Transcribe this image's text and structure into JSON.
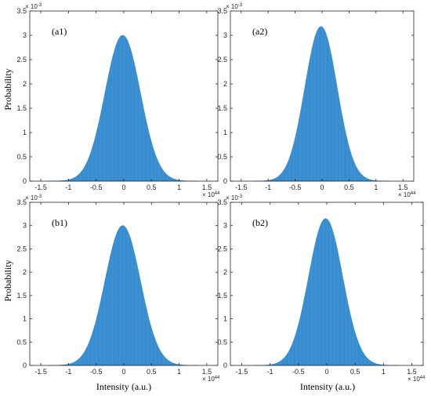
{
  "figure": {
    "ylabel": "Probability",
    "xlabel": "Intensity (a.u.)",
    "x_exponent_base": "× 10",
    "x_exponent_power": "44",
    "y_exponent_base": "× 10",
    "y_exponent_power": "-3"
  },
  "chart_data": [
    {
      "type": "area",
      "panel_label": "(a1)",
      "xlim": [
        -1.7,
        1.7
      ],
      "ylim": [
        0,
        3.5
      ],
      "xticks": [
        -1.5,
        -1,
        -0.5,
        0,
        0.5,
        1,
        1.5
      ],
      "xtick_labels": [
        "-1.5",
        "-1",
        "-0.5",
        "0",
        "0.5",
        "1",
        "1.5"
      ],
      "yticks": [
        0,
        0.5,
        1,
        1.5,
        2,
        2.5,
        3,
        3.5
      ],
      "ytick_labels": [
        "0",
        "0.5",
        "1",
        "1.5",
        "2",
        "2.5",
        "3",
        "3.5"
      ],
      "x_exponent": "44",
      "y_exponent": "-3",
      "distribution": {
        "mean": -0.02,
        "sigma": 0.32,
        "peak": 3.0
      },
      "color": "#3a8fd1"
    },
    {
      "type": "area",
      "panel_label": "(a2)",
      "xlim": [
        -1.7,
        1.7
      ],
      "ylim": [
        0,
        3.5
      ],
      "xticks": [
        -1.5,
        -1,
        -0.5,
        0,
        0.5,
        1,
        1.5
      ],
      "xtick_labels": [
        "-1.5",
        "-1",
        "-0.5",
        "0",
        "0.5",
        "1",
        "1.5"
      ],
      "yticks": [
        0,
        0.5,
        1,
        1.5,
        2,
        2.5,
        3,
        3.5
      ],
      "ytick_labels": [
        "0",
        "0.5",
        "1",
        "1.5",
        "2",
        "2.5",
        "3",
        "3.5"
      ],
      "x_exponent": "44",
      "y_exponent": "-3",
      "distribution": {
        "mean": -0.02,
        "sigma": 0.3,
        "peak": 3.18
      },
      "color": "#3a8fd1"
    },
    {
      "type": "area",
      "panel_label": "(b1)",
      "xlim": [
        -1.7,
        1.7
      ],
      "ylim": [
        0,
        3.5
      ],
      "xticks": [
        -1.5,
        -1,
        -0.5,
        0,
        0.5,
        1,
        1.5
      ],
      "xtick_labels": [
        "-1.5",
        "-1",
        "-0.5",
        "0",
        "0.5",
        "1",
        "1.5"
      ],
      "yticks": [
        0,
        0.5,
        1,
        1.5,
        2,
        2.5,
        3,
        3.5
      ],
      "ytick_labels": [
        "0",
        "0.5",
        "1",
        "1.5",
        "2",
        "2.5",
        "3",
        "3.5"
      ],
      "x_exponent": "44",
      "y_exponent": "-3",
      "distribution": {
        "mean": -0.02,
        "sigma": 0.32,
        "peak": 3.0
      },
      "color": "#3a8fd1"
    },
    {
      "type": "area",
      "panel_label": "(b2)",
      "xlim": [
        -1.7,
        1.7
      ],
      "ylim": [
        0,
        3.5
      ],
      "xticks": [
        -1.5,
        -1,
        -0.5,
        0,
        0.5,
        1,
        1.5
      ],
      "xtick_labels": [
        "-1.5",
        "-1",
        "-0.5",
        "0",
        "0.5",
        "1",
        "1.5"
      ],
      "yticks": [
        0,
        0.5,
        1,
        1.5,
        2,
        2.5,
        3,
        3.5
      ],
      "ytick_labels": [
        "0",
        "0.5",
        "1",
        "1.5",
        "2",
        "2.5",
        "3",
        "3.5"
      ],
      "x_exponent": "44",
      "y_exponent": "-3",
      "distribution": {
        "mean": -0.02,
        "sigma": 0.3,
        "peak": 3.15
      },
      "color": "#3a8fd1"
    }
  ]
}
